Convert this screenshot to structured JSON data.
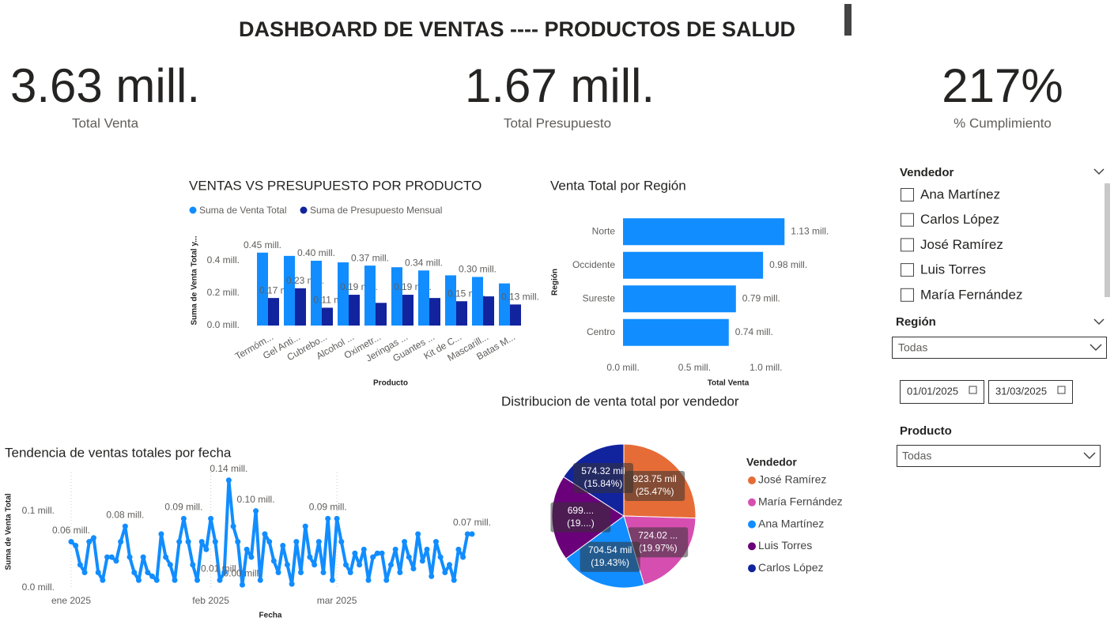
{
  "title": "DASHBOARD DE VENTAS  ---- PRODUCTOS DE SALUD",
  "kpis": [
    {
      "value": "3.63 mill.",
      "label": "Total Venta"
    },
    {
      "value": "1.67 mill.",
      "label": "Total Presupuesto"
    },
    {
      "value": "217%",
      "label": "% Cumplimiento"
    }
  ],
  "filters": {
    "vendedor": {
      "title": "Vendedor",
      "items": [
        "Ana Martínez",
        "Carlos López",
        "José Ramírez",
        "Luis Torres",
        "María Fernández"
      ]
    },
    "region": {
      "title": "Región",
      "selected": "Todas"
    },
    "fecha": {
      "start": "01/01/2025",
      "end": "31/03/2025"
    },
    "producto": {
      "title": "Producto",
      "selected": "Todas"
    }
  },
  "chart_data": [
    {
      "type": "bar",
      "title": "VENTAS VS PRESUPUESTO POR PRODUCTO",
      "y_label": "Suma de Venta Total y...",
      "x_label": "Producto",
      "categories": [
        "Termóm...",
        "Gel Anti...",
        "Cubrebo...",
        "Alcohol ...",
        "Oximetr...",
        "Jeringas ...",
        "Guantes ...",
        "Kit de C...",
        "Mascarill...",
        "Batas M..."
      ],
      "series": [
        {
          "name": "Suma de Venta Total",
          "color": "#118DFF",
          "values": [
            0.45,
            0.43,
            0.4,
            0.39,
            0.37,
            0.36,
            0.34,
            0.31,
            0.3,
            0.26
          ],
          "value_labels": [
            "0.45 mill.",
            null,
            "0.40 mill.",
            null,
            "0.37 mill.",
            null,
            "0.34 mill.",
            null,
            "0.30 mill.",
            null
          ]
        },
        {
          "name": "Suma de Presupuesto Mensual",
          "color": "#12239E",
          "values": [
            0.17,
            0.23,
            0.11,
            0.19,
            0.14,
            0.19,
            0.17,
            0.15,
            0.18,
            0.13
          ],
          "value_labels": [
            "0.17 mill.",
            "0.23 mill.",
            "0.11 mill.",
            "0.19 mill.",
            null,
            "0.19 mill.",
            null,
            "0.15 mill.",
            null,
            "0.13 mill."
          ]
        }
      ],
      "ylim": [
        0,
        0.5
      ],
      "yticks": [
        {
          "value": 0,
          "label": "0.0 mill."
        },
        {
          "value": 0.2,
          "label": "0.2 mill."
        },
        {
          "value": 0.4,
          "label": "0.4 mill."
        }
      ]
    },
    {
      "type": "hbar",
      "title": "Venta Total por Región",
      "y_label": "Región",
      "x_label": "Total Venta",
      "categories": [
        "Norte",
        "Occidente",
        "Sureste",
        "Centro"
      ],
      "values": [
        1.13,
        0.98,
        0.79,
        0.74
      ],
      "value_labels": [
        "1.13 mill.",
        "0.98 mill.",
        "0.79 mill.",
        "0.74 mill."
      ],
      "color": "#118DFF",
      "xlim": [
        0,
        1.3
      ],
      "xticks": [
        {
          "value": 0,
          "label": "0.0 mill."
        },
        {
          "value": 0.5,
          "label": "0.5 mill."
        },
        {
          "value": 1,
          "label": "1.0 mill."
        }
      ]
    },
    {
      "type": "line",
      "title": "Tendencia de ventas totales por fecha",
      "y_label": "Suma de Venta Total",
      "x_label": "Fecha",
      "x": [
        0,
        1,
        2,
        3,
        4,
        5,
        6,
        7,
        8,
        9,
        10,
        11,
        12,
        13,
        14,
        15,
        16,
        17,
        18,
        19,
        20,
        21,
        22,
        23,
        24,
        25,
        26,
        27,
        28,
        29,
        30,
        31,
        32,
        33,
        34,
        35,
        36,
        37,
        38,
        39,
        40,
        41,
        42,
        43,
        44,
        45,
        46,
        47,
        48,
        49,
        50,
        51,
        52,
        53,
        54,
        55,
        56,
        57,
        58,
        59,
        60,
        61,
        62,
        63,
        64,
        65,
        66,
        67,
        68,
        69,
        70,
        71,
        72,
        73,
        74,
        75,
        76,
        77,
        78,
        79,
        80,
        81,
        82,
        83,
        84,
        85,
        86,
        87,
        88,
        89
      ],
      "series": [
        {
          "name": "Suma de Venta Total",
          "color": "#118DFF",
          "values": [
            0.06,
            0.055,
            0.03,
            0.02,
            0.06,
            0.065,
            0.02,
            0.01,
            0.04,
            0.04,
            0.035,
            0.06,
            0.08,
            0.04,
            0.02,
            0.01,
            0.04,
            0.02,
            0.015,
            0.01,
            0.07,
            0.04,
            0.03,
            0.01,
            0.06,
            0.09,
            0.06,
            0.03,
            0.01,
            0.06,
            0.05,
            0.09,
            0.06,
            0.01,
            0.02,
            0.14,
            0.08,
            0.06,
            0.004,
            0.05,
            0.04,
            0.1,
            0.01,
            0.07,
            0.06,
            0.035,
            0.02,
            0.055,
            0.03,
            0.005,
            0.06,
            0.02,
            0.08,
            0.04,
            0.03,
            0.06,
            0.02,
            0.09,
            0.01,
            0.09,
            0.06,
            0.03,
            0.02,
            0.045,
            0.03,
            0.05,
            0.01,
            0.04,
            0.045,
            0.045,
            0.01,
            0.03,
            0.05,
            0.02,
            0.06,
            0.04,
            0.025,
            0.07,
            0.035,
            0.05,
            0.015,
            0.06,
            0.04,
            0.02,
            0.03,
            0.01,
            0.05,
            0.04,
            0.07,
            0.07
          ],
          "value_labels": [
            "0.06 mill.",
            null,
            null,
            null,
            null,
            null,
            null,
            null,
            null,
            null,
            null,
            null,
            "0.08 mill.",
            null,
            null,
            null,
            null,
            null,
            null,
            null,
            null,
            null,
            null,
            null,
            null,
            "0.09 mill.",
            null,
            null,
            null,
            null,
            null,
            null,
            null,
            "0.01 mill.",
            null,
            "0.14 mill.",
            null,
            null,
            "0.00 mill.",
            null,
            null,
            "0.10 mill.",
            null,
            null,
            null,
            null,
            null,
            null,
            null,
            null,
            null,
            null,
            null,
            null,
            null,
            null,
            null,
            "0.09 mill.",
            null,
            null,
            null,
            null,
            null,
            null,
            null,
            null,
            null,
            null,
            null,
            null,
            null,
            null,
            null,
            null,
            null,
            null,
            null,
            null,
            null,
            null,
            null,
            null,
            null,
            null,
            null,
            null,
            null,
            null,
            null,
            "0.07 mill."
          ]
        }
      ],
      "xlim": [
        0,
        89
      ],
      "xticks": [
        {
          "value": 0,
          "label": "ene 2025"
        },
        {
          "value": 31,
          "label": "feb 2025"
        },
        {
          "value": 59,
          "label": "mar 2025"
        }
      ],
      "ylim": [
        0,
        0.15
      ],
      "yticks": [
        {
          "value": 0,
          "label": "0.0 mill."
        },
        {
          "value": 0.1,
          "label": "0.1 mill."
        }
      ],
      "grid": true
    },
    {
      "type": "pie",
      "title": "Distribucion de venta total por vendedor",
      "legend_title": "Vendedor",
      "categories": [
        "José Ramírez",
        "María Fernández",
        "Ana Martínez",
        "Luis Torres",
        "Carlos López"
      ],
      "values": [
        923.75,
        724.02,
        704.54,
        699.5,
        574.32
      ],
      "value_labels": [
        "923.75 mil",
        "724.02 ...",
        "704.54 mil",
        "699....",
        "574.32 mil"
      ],
      "percent_labels": [
        "(25.47%)",
        "(19.97%)",
        "(19.43%)",
        "(19....)",
        "(15.84%)"
      ],
      "colors": [
        "#E66C37",
        "#D64FB0",
        "#118DFF",
        "#6B007B",
        "#12239E"
      ]
    }
  ]
}
